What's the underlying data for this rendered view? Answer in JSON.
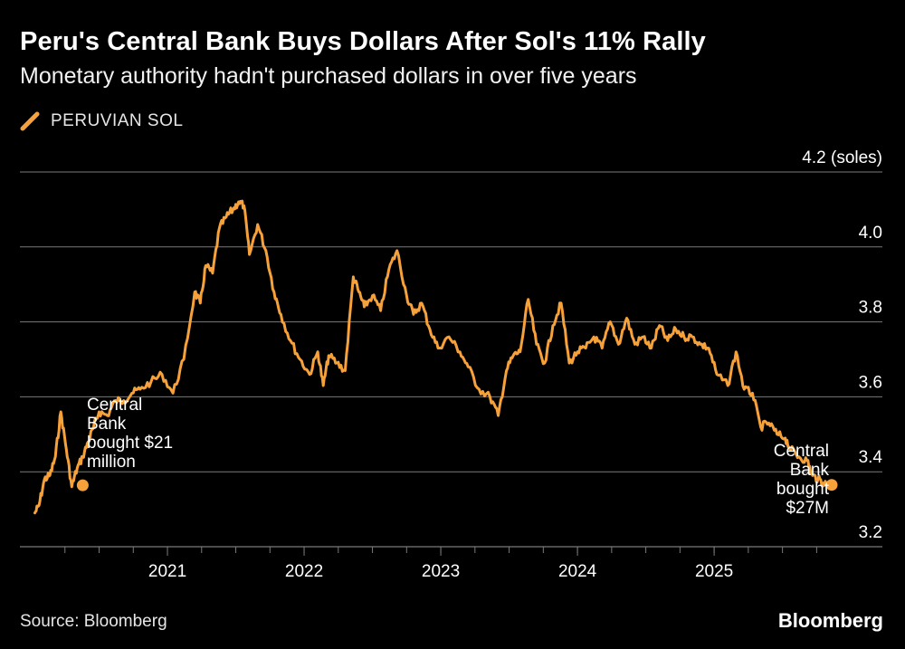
{
  "header": {
    "title": "Peru's Central Bank Buys Dollars After Sol's 11% Rally",
    "subtitle": "Monetary authority hadn't purchased dollars in over five years"
  },
  "legend": {
    "label": "PERUVIAN SOL"
  },
  "footer": {
    "source": "Source: Bloomberg",
    "brand": "Bloomberg"
  },
  "colors": {
    "line": "#f6a13a",
    "grid": "#7a7a7a",
    "background": "#000000",
    "text": "#ffffff"
  },
  "annotations": {
    "left": {
      "lines": [
        "Central",
        "Bank",
        "bought $21",
        "million"
      ]
    },
    "right": {
      "lines": [
        "Central",
        "Bank",
        "bought",
        "$27M"
      ]
    }
  },
  "chart_data": {
    "type": "line",
    "title": "Peru's Central Bank Buys Dollars After Sol's 11% Rally",
    "xlabel": "",
    "ylabel": "",
    "unit_label": "(soles)",
    "xlim": [
      2020.0,
      2026.0
    ],
    "ylim": [
      3.2,
      4.2
    ],
    "y_ticks": [
      3.2,
      3.4,
      3.6,
      3.8,
      4.0,
      4.2
    ],
    "y_tick_labels": [
      "3.2",
      "3.4",
      "3.6",
      "3.8",
      "4.0",
      "4.2 (soles)"
    ],
    "x_ticks": [
      2021,
      2022,
      2023,
      2024,
      2025
    ],
    "x_tick_labels": [
      "2021",
      "2022",
      "2023",
      "2024",
      "2025"
    ],
    "grid": true,
    "legend_position": "top-left",
    "series": [
      {
        "name": "PERUVIAN SOL",
        "x": [
          2020.03,
          2020.06,
          2020.1,
          2020.14,
          2020.18,
          2020.22,
          2020.26,
          2020.3,
          2020.34,
          2020.38,
          2020.42,
          2020.46,
          2020.5,
          2020.56,
          2020.62,
          2020.68,
          2020.74,
          2020.8,
          2020.88,
          2020.96,
          2021.04,
          2021.12,
          2021.2,
          2021.24,
          2021.28,
          2021.33,
          2021.38,
          2021.43,
          2021.48,
          2021.52,
          2021.56,
          2021.6,
          2021.66,
          2021.72,
          2021.78,
          2021.83,
          2021.9,
          2021.97,
          2022.04,
          2022.1,
          2022.14,
          2022.18,
          2022.24,
          2022.3,
          2022.36,
          2022.4,
          2022.44,
          2022.5,
          2022.56,
          2022.62,
          2022.68,
          2022.75,
          2022.8,
          2022.86,
          2022.92,
          2022.98,
          2023.06,
          2023.14,
          2023.2,
          2023.28,
          2023.36,
          2023.42,
          2023.48,
          2023.53,
          2023.58,
          2023.64,
          2023.7,
          2023.76,
          2023.82,
          2023.88,
          2023.94,
          2024.0,
          2024.06,
          2024.12,
          2024.18,
          2024.24,
          2024.3,
          2024.36,
          2024.42,
          2024.48,
          2024.54,
          2024.6,
          2024.66,
          2024.72,
          2024.78,
          2024.84,
          2024.9,
          2024.96,
          2025.02,
          2025.1,
          2025.16,
          2025.22,
          2025.28,
          2025.34,
          2025.4,
          2025.46,
          2025.52,
          2025.56,
          2025.62,
          2025.68,
          2025.72,
          2025.76,
          2025.8,
          2025.84
        ],
        "values": [
          3.29,
          3.31,
          3.38,
          3.39,
          3.44,
          3.56,
          3.46,
          3.36,
          3.41,
          3.44,
          3.48,
          3.52,
          3.56,
          3.55,
          3.59,
          3.59,
          3.61,
          3.62,
          3.64,
          3.66,
          3.61,
          3.7,
          3.88,
          3.85,
          3.95,
          3.93,
          4.05,
          4.08,
          4.1,
          4.12,
          4.11,
          3.98,
          4.06,
          3.99,
          3.88,
          3.82,
          3.75,
          3.7,
          3.66,
          3.72,
          3.63,
          3.71,
          3.69,
          3.67,
          3.92,
          3.88,
          3.84,
          3.87,
          3.83,
          3.94,
          3.99,
          3.87,
          3.82,
          3.85,
          3.78,
          3.73,
          3.76,
          3.72,
          3.68,
          3.62,
          3.6,
          3.55,
          3.67,
          3.71,
          3.72,
          3.86,
          3.74,
          3.69,
          3.79,
          3.85,
          3.69,
          3.72,
          3.73,
          3.76,
          3.73,
          3.8,
          3.74,
          3.81,
          3.74,
          3.76,
          3.73,
          3.79,
          3.75,
          3.78,
          3.76,
          3.76,
          3.74,
          3.73,
          3.66,
          3.63,
          3.72,
          3.62,
          3.61,
          3.52,
          3.53,
          3.5,
          3.49,
          3.46,
          3.44,
          3.43,
          3.39,
          3.38,
          3.37,
          3.365
        ]
      }
    ],
    "markers": [
      {
        "x": 2020.38,
        "y": 3.364,
        "label": "Central Bank bought $21 million"
      },
      {
        "x": 2025.86,
        "y": 3.365,
        "label": "Central Bank bought $27M"
      }
    ]
  }
}
